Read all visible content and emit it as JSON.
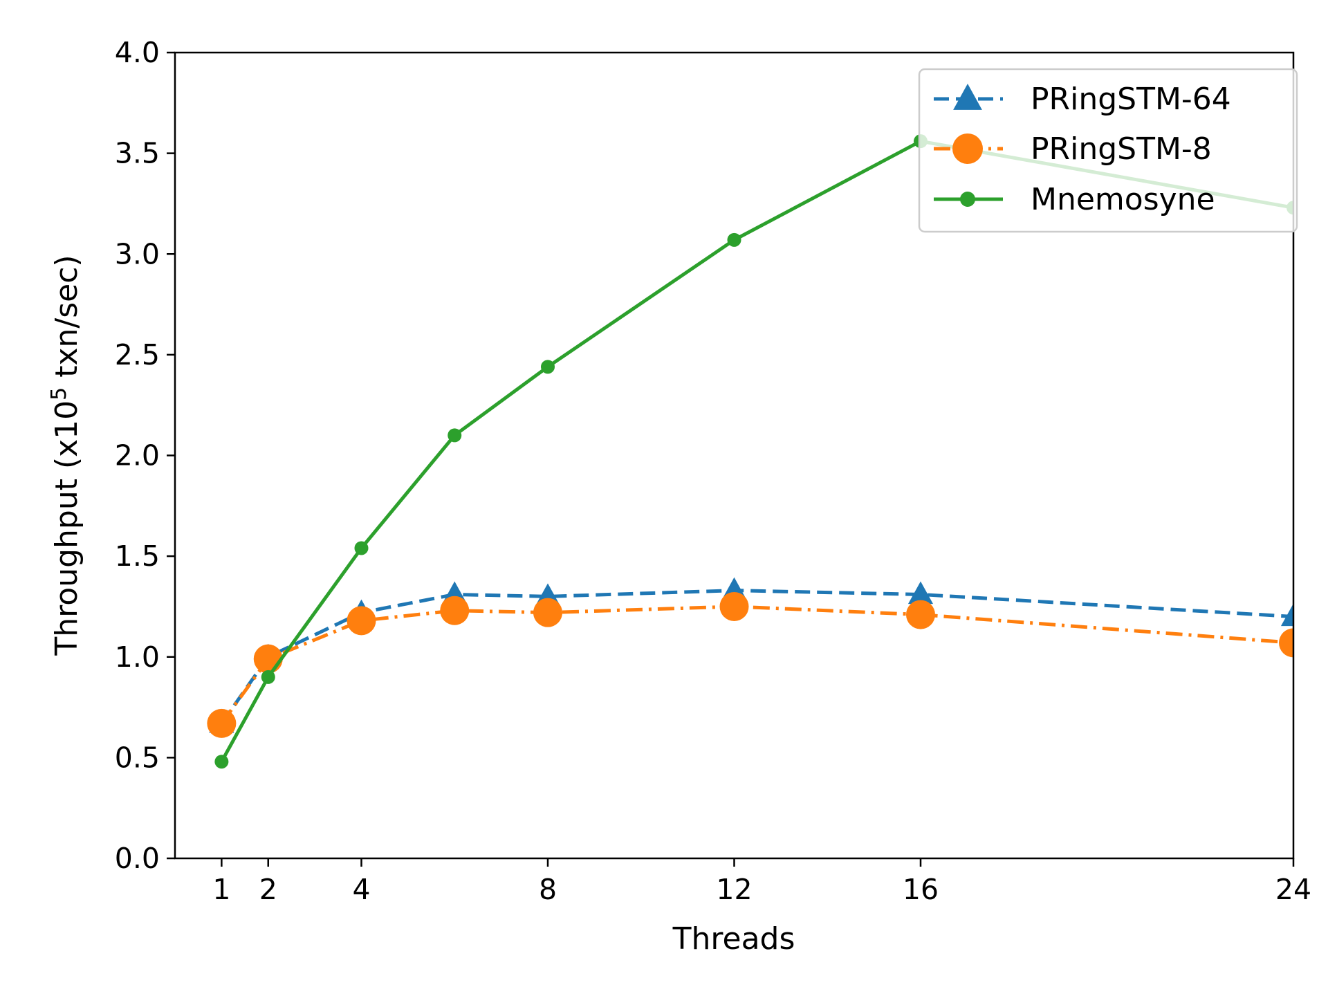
{
  "chart_data": {
    "type": "line",
    "xlabel": "Threads",
    "ylabel": {
      "prefix": "Throughput (x10",
      "superscript": "5",
      "suffix": " txn/sec)"
    },
    "x_ticks": [
      1,
      2,
      4,
      8,
      12,
      16,
      24
    ],
    "x_tick_labels": [
      "1",
      "2",
      "4",
      "8",
      "12",
      "16",
      "24"
    ],
    "y_ticks": [
      0.0,
      0.5,
      1.0,
      1.5,
      2.0,
      2.5,
      3.0,
      3.5,
      4.0
    ],
    "y_tick_labels": [
      "0.0",
      "0.5",
      "1.0",
      "1.5",
      "2.0",
      "2.5",
      "3.0",
      "3.5",
      "4.0"
    ],
    "xlim": [
      0,
      24
    ],
    "ylim": [
      0,
      4.0
    ],
    "grid": false,
    "legend_position": "top-right",
    "series": [
      {
        "name": "PRingSTM-64",
        "color": "#1f77b4",
        "line_style": "dashed",
        "marker": "triangle",
        "x": [
          1,
          2,
          4,
          6,
          8,
          12,
          16,
          24
        ],
        "values": [
          0.67,
          1.0,
          1.22,
          1.31,
          1.3,
          1.33,
          1.31,
          1.2
        ]
      },
      {
        "name": "PRingSTM-8",
        "color": "#ff7f0e",
        "line_style": "dash-dot",
        "marker": "circle",
        "x": [
          1,
          2,
          4,
          6,
          8,
          12,
          16,
          24
        ],
        "values": [
          0.67,
          0.99,
          1.18,
          1.23,
          1.22,
          1.25,
          1.21,
          1.07
        ]
      },
      {
        "name": "Mnemosyne",
        "color": "#2ca02c",
        "line_style": "solid",
        "marker": "dot",
        "x": [
          1,
          2,
          4,
          6,
          8,
          12,
          16,
          24
        ],
        "values": [
          0.48,
          0.9,
          1.54,
          2.1,
          2.44,
          3.07,
          3.56,
          3.23
        ]
      }
    ]
  }
}
